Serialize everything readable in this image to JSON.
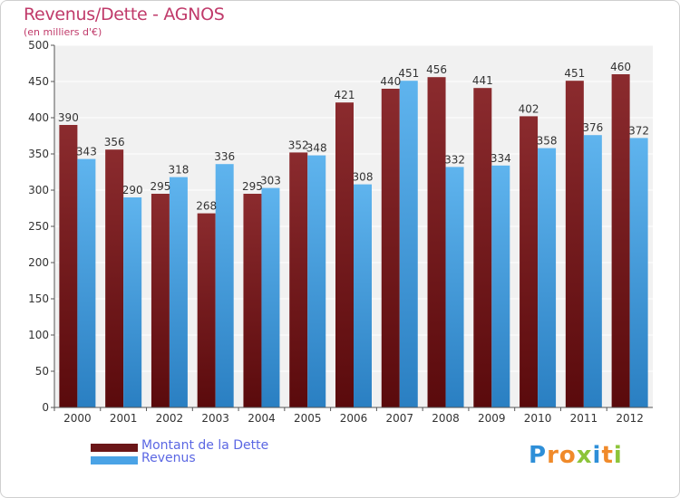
{
  "title": "Revenus/Dette - AGNOS",
  "subtitle": "(en milliers d'€)",
  "colors": {
    "title": "#c03a6a",
    "dette_top": "#8b2b2e",
    "dette_bottom": "#5a0a0c",
    "revenus_top": "#5fb4ee",
    "revenus_bottom": "#2a7fc2",
    "legend_text": "#5b67e3"
  },
  "legend": [
    {
      "label": "Montant de la Dette",
      "color": "#6b1618"
    },
    {
      "label": "Revenus",
      "color": "#4aa3e6"
    }
  ],
  "logo": {
    "letters": [
      "P",
      "r",
      "o",
      "x",
      "i",
      "t",
      "i"
    ],
    "colors": [
      "#2e8fd8",
      "#f08a2a",
      "#f08a2a",
      "#8cc43a",
      "#2e8fd8",
      "#f08a2a",
      "#8cc43a"
    ]
  },
  "chart_data": {
    "type": "bar",
    "categories": [
      "2000",
      "2001",
      "2002",
      "2003",
      "2004",
      "2005",
      "2006",
      "2007",
      "2008",
      "2009",
      "2010",
      "2011",
      "2012"
    ],
    "series": [
      {
        "name": "Montant de la Dette",
        "values": [
          390,
          356,
          295,
          268,
          295,
          352,
          421,
          440,
          456,
          441,
          402,
          451,
          460
        ]
      },
      {
        "name": "Revenus",
        "values": [
          343,
          290,
          318,
          336,
          303,
          348,
          308,
          451,
          332,
          334,
          358,
          376,
          372
        ]
      }
    ],
    "yticks": [
      0,
      50,
      100,
      150,
      200,
      250,
      300,
      350,
      400,
      450,
      500
    ],
    "ylim": [
      0,
      500
    ],
    "grid": true,
    "legend_position": "bottom-left"
  }
}
